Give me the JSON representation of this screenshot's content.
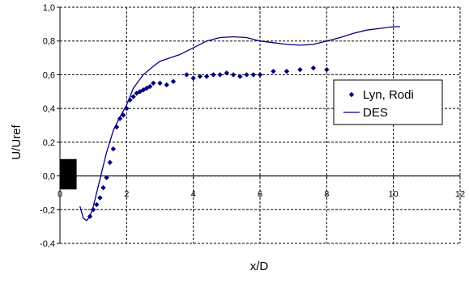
{
  "chart_data": {
    "type": "line",
    "title": "",
    "xlabel": "x/D",
    "ylabel": "U/Uref",
    "xlim": [
      0,
      12
    ],
    "ylim": [
      -0.4,
      1.0
    ],
    "x_ticks": [
      "0",
      "2",
      "4",
      "6",
      "8",
      "10",
      "12"
    ],
    "y_ticks": [
      "-0,4",
      "-0,2",
      "0,0",
      "0,2",
      "0,4",
      "0,6",
      "0,8",
      "1,0"
    ],
    "grid": "dashed",
    "legend_position": "right",
    "obstacle": {
      "x": [
        0,
        0.5
      ],
      "y": [
        -0.08,
        0.1
      ],
      "color": "#000000"
    },
    "series": [
      {
        "name": "Lyn, Rodi",
        "style": "markers",
        "marker": "diamond",
        "color": "#000080",
        "x": [
          0.9,
          1.0,
          1.1,
          1.2,
          1.3,
          1.4,
          1.5,
          1.6,
          1.7,
          1.8,
          1.9,
          2.0,
          2.1,
          2.2,
          2.3,
          2.4,
          2.5,
          2.6,
          2.7,
          2.8,
          3.0,
          3.2,
          3.4,
          3.8,
          4.0,
          4.2,
          4.4,
          4.6,
          4.8,
          5.0,
          5.2,
          5.4,
          5.6,
          5.8,
          6.0,
          6.4,
          6.8,
          7.2,
          7.6,
          8.0
        ],
        "y": [
          -0.24,
          -0.2,
          -0.17,
          -0.13,
          -0.07,
          -0.01,
          0.08,
          0.16,
          0.29,
          0.34,
          0.36,
          0.4,
          0.45,
          0.47,
          0.49,
          0.5,
          0.51,
          0.52,
          0.53,
          0.55,
          0.55,
          0.54,
          0.56,
          0.6,
          0.58,
          0.59,
          0.59,
          0.6,
          0.6,
          0.61,
          0.6,
          0.59,
          0.6,
          0.6,
          0.6,
          0.62,
          0.62,
          0.63,
          0.64,
          0.63
        ]
      },
      {
        "name": "DES",
        "style": "line",
        "color": "#000080",
        "x": [
          0.6,
          0.7,
          0.8,
          0.9,
          1.0,
          1.2,
          1.4,
          1.6,
          1.8,
          2.0,
          2.2,
          2.5,
          2.8,
          3.0,
          3.3,
          3.6,
          4.0,
          4.4,
          4.8,
          5.2,
          5.6,
          6.0,
          6.4,
          6.8,
          7.2,
          7.6,
          8.0,
          8.4,
          8.8,
          9.2,
          9.6,
          10.0,
          10.2
        ],
        "y": [
          -0.18,
          -0.25,
          -0.265,
          -0.24,
          -0.18,
          -0.02,
          0.14,
          0.27,
          0.35,
          0.42,
          0.52,
          0.6,
          0.65,
          0.68,
          0.7,
          0.72,
          0.76,
          0.8,
          0.82,
          0.825,
          0.82,
          0.8,
          0.79,
          0.78,
          0.775,
          0.78,
          0.8,
          0.82,
          0.845,
          0.865,
          0.875,
          0.885,
          0.885
        ]
      }
    ]
  }
}
